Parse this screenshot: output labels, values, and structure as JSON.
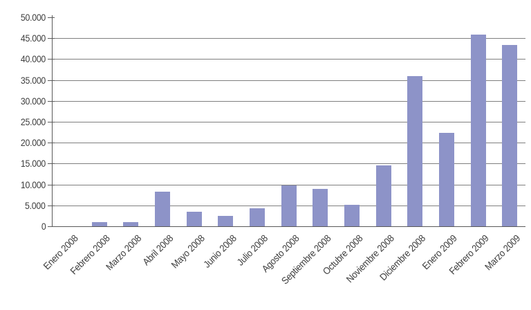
{
  "chart_data": {
    "type": "bar",
    "title": "",
    "xlabel": "",
    "ylabel": "",
    "categories": [
      "Enero 2008",
      "Febrero 2008",
      "Marzo 2008",
      "Abril 2008",
      "Mayo 2008",
      "Junio 2008",
      "Julio 2008",
      "Agosto 2008",
      "Septiembre 2008",
      "Octubre 2008",
      "Noviembre 2008",
      "Diciembre 2008",
      "Enero 2009",
      "Febrero 2009",
      "Marzo 2009"
    ],
    "values": [
      0,
      1000,
      1000,
      8300,
      3400,
      2500,
      4300,
      9700,
      8900,
      5200,
      14500,
      36000,
      22300,
      45800,
      43400
    ],
    "ylim": [
      0,
      50000
    ],
    "ytick_interval": 5000,
    "ytick_labels": [
      "0",
      "5.000",
      "10.000",
      "15.000",
      "20.000",
      "25.000",
      "30.000",
      "35.000",
      "40.000",
      "45.000",
      "50.000"
    ],
    "grid": true,
    "legend_position": "none",
    "x_label_rotation_deg": -45,
    "colors": {
      "bar": "#8d93c8",
      "gridline": "#7f7f7f",
      "axis": "#595959",
      "label": "#3d3d3d",
      "background": "#ffffff"
    }
  }
}
